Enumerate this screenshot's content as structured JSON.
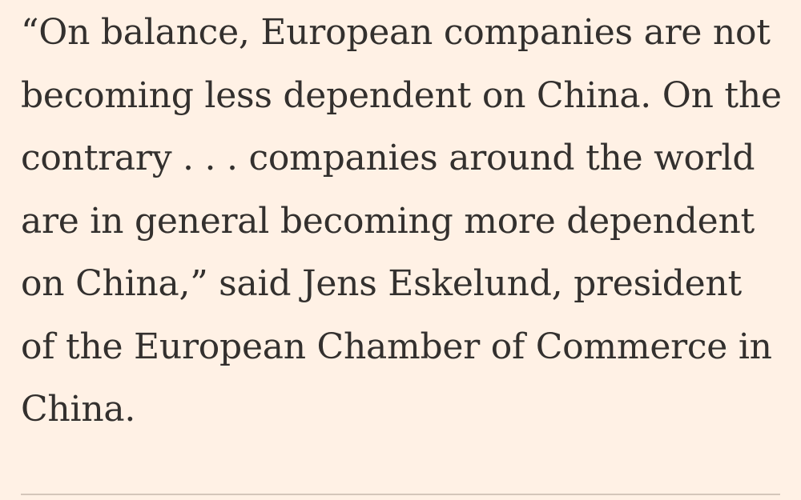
{
  "article": {
    "paragraph_lines": [
      "“On balance, European companies are not",
      "becoming less dependent on China. On the",
      "contrary . . . companies around the world",
      "are in general becoming more dependent",
      "on China,” said Jens Eskelund, president",
      "of the European Chamber of Commerce in",
      "China."
    ]
  },
  "colors": {
    "background": "#FFF1E5",
    "text": "#33302E",
    "divider": "#D4C6BA"
  }
}
